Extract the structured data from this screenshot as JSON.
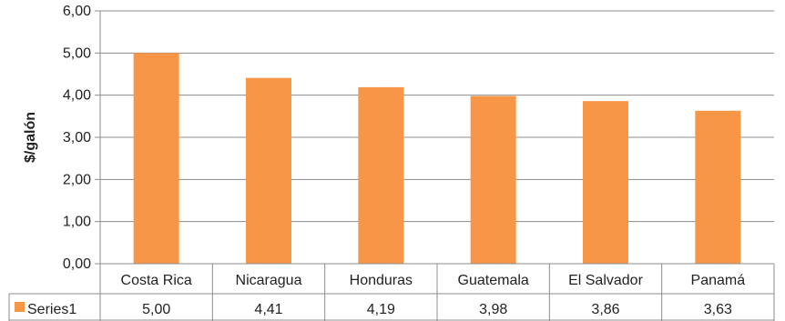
{
  "chart_data": {
    "type": "bar",
    "categories": [
      "Costa Rica",
      "Nicaragua",
      "Honduras",
      "Guatemala",
      "El Salvador",
      "Panamá"
    ],
    "series": [
      {
        "name": "Series1",
        "values": [
          5.0,
          4.41,
          4.19,
          3.98,
          3.86,
          3.63
        ],
        "color": "#F79646"
      }
    ],
    "value_labels": [
      "5,00",
      "4,41",
      "4,19",
      "3,98",
      "3,86",
      "3,63"
    ],
    "ylabel": "$/galón",
    "xlabel": "",
    "ylim": [
      0,
      6
    ],
    "yticks": [
      "0,00",
      "1,00",
      "2,00",
      "3,00",
      "4,00",
      "5,00",
      "6,00"
    ],
    "grid": true,
    "legend_placement": "data-table-left",
    "data_table": true
  }
}
